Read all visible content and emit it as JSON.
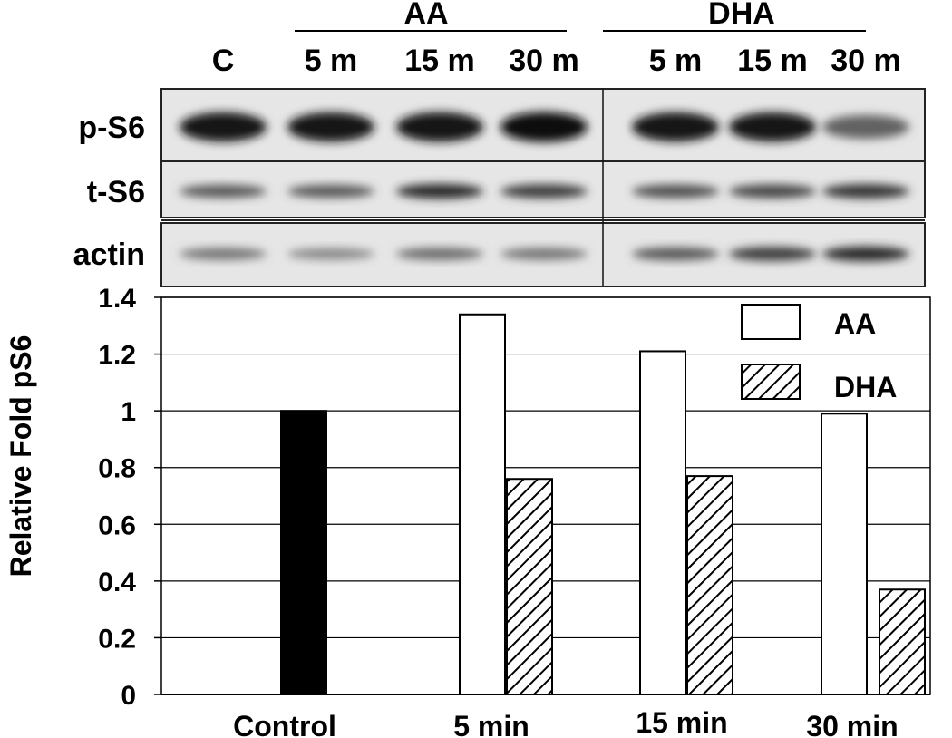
{
  "blot": {
    "groups": [
      {
        "label": "AA"
      },
      {
        "label": "DHA"
      }
    ],
    "lanes": [
      "C",
      "5 m",
      "15 m",
      "30 m",
      "5 m",
      "15 m",
      "30 m"
    ],
    "rows": [
      {
        "label": "p-S6",
        "intensity": [
          0.95,
          0.95,
          0.98,
          1.0,
          0.95,
          0.95,
          0.55
        ]
      },
      {
        "label": "t-S6",
        "intensity": [
          0.6,
          0.6,
          0.85,
          0.75,
          0.65,
          0.7,
          0.8
        ]
      },
      {
        "label": "actin",
        "intensity": [
          0.45,
          0.35,
          0.5,
          0.45,
          0.6,
          0.75,
          0.85
        ]
      }
    ]
  },
  "chart_data": {
    "type": "bar",
    "title": "",
    "xlabel": "",
    "ylabel": "Relative Fold pS6",
    "categories": [
      "Control",
      "5 min",
      "15 min",
      "30 min"
    ],
    "series": [
      {
        "name": "",
        "values": [
          1.0,
          null,
          null,
          null
        ],
        "color": "#000000",
        "pattern": "solid"
      },
      {
        "name": "AA",
        "values": [
          null,
          1.34,
          1.21,
          0.99
        ],
        "color": "#ffffff",
        "pattern": "none"
      },
      {
        "name": "DHA",
        "values": [
          null,
          0.76,
          0.77,
          0.37
        ],
        "color": "#ffffff",
        "pattern": "diagonal-hatch"
      }
    ],
    "yticks": [
      "0",
      "0.2",
      "0.4",
      "0.6",
      "0.8",
      "1",
      "1.2",
      "1.4"
    ],
    "ylim": [
      0,
      1.4
    ],
    "grid": true,
    "legend": "top-right"
  }
}
